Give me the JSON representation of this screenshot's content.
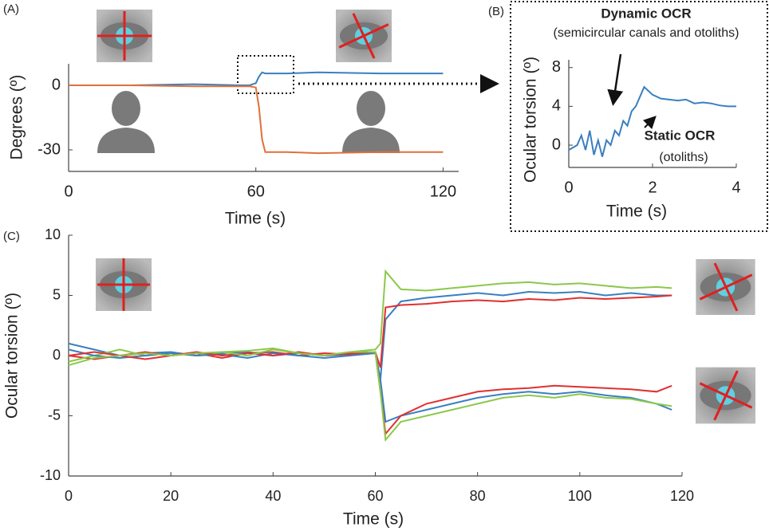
{
  "chart_data": [
    {
      "type": "line",
      "panel_label": "(A)",
      "xlabel": "Time (s)",
      "ylabel": "Degrees (º)",
      "xlim": [
        0,
        125
      ],
      "ylim": [
        -40,
        10
      ],
      "xticks": [
        0,
        60,
        120
      ],
      "yticks": [
        0,
        -30
      ],
      "x": [
        0,
        20,
        40,
        55,
        58,
        60,
        61,
        62,
        63,
        65,
        70,
        80,
        100,
        120
      ],
      "series": [
        {
          "color": "#3a7fc1",
          "values": [
            0,
            0,
            0.5,
            0,
            0,
            1,
            4,
            6,
            5.5,
            5.5,
            5.5,
            6,
            5.5,
            5.5
          ]
        },
        {
          "color": "#e0703a",
          "values": [
            0,
            0,
            -0.5,
            -0.5,
            -0.5,
            -1,
            -10,
            -25,
            -31,
            -31,
            -31,
            -31.5,
            -31,
            -31
          ]
        }
      ]
    },
    {
      "type": "line",
      "panel_label": "(B)",
      "xlabel": "Time (s)",
      "ylabel": "Ocular torsion (º)",
      "xlim": [
        0,
        4
      ],
      "ylim": [
        -2.3,
        8.8
      ],
      "xticks": [
        0,
        2,
        4
      ],
      "yticks": [
        0,
        4,
        8
      ],
      "annotations": [
        "Dynamic OCR",
        "(semicircular canals and otoliths)",
        "Static OCR",
        "(otoliths)"
      ],
      "x": [
        0,
        0.2,
        0.3,
        0.4,
        0.5,
        0.6,
        0.7,
        0.8,
        0.9,
        1.0,
        1.1,
        1.2,
        1.3,
        1.4,
        1.5,
        1.6,
        1.7,
        1.8,
        2.0,
        2.2,
        2.4,
        2.6,
        2.8,
        3.0,
        3.2,
        3.4,
        3.6,
        3.8,
        4.0
      ],
      "series": [
        {
          "color": "#3a7fc1",
          "values": [
            -0.5,
            0,
            1,
            -0.5,
            1.5,
            -1,
            0.5,
            -1.2,
            0.5,
            0,
            1.5,
            1,
            2.5,
            2,
            3.5,
            4,
            5,
            6,
            5.2,
            4.8,
            4.7,
            4.6,
            4.7,
            4.3,
            4.4,
            4.3,
            4.1,
            4.0,
            4.0
          ]
        }
      ]
    },
    {
      "type": "line",
      "panel_label": "(C)",
      "xlabel": "Time (s)",
      "ylabel": "Ocular torsion (º)",
      "xlim": [
        0,
        120
      ],
      "ylim": [
        -10,
        10
      ],
      "xticks": [
        0,
        20,
        40,
        60,
        80,
        100,
        120
      ],
      "yticks": [
        -10,
        -5,
        0,
        5,
        10
      ],
      "x": [
        0,
        5,
        10,
        15,
        20,
        25,
        30,
        35,
        40,
        45,
        50,
        55,
        60,
        61,
        62,
        65,
        70,
        75,
        80,
        85,
        90,
        95,
        100,
        105,
        110,
        115,
        118
      ],
      "series": [
        {
          "color": "#3a7fc1",
          "values": [
            1,
            0.5,
            0,
            0.2,
            0.3,
            0,
            0.2,
            0.3,
            0,
            0.2,
            0,
            0.1,
            0.3,
            -2,
            3,
            4.5,
            4.8,
            5,
            5.2,
            5,
            5.3,
            5.2,
            5.3,
            5,
            5.2,
            5,
            5
          ]
        },
        {
          "color": "#e03030",
          "values": [
            0,
            -0.3,
            0,
            0.3,
            0,
            0.2,
            -0.2,
            0.2,
            0.3,
            0,
            0.2,
            0.1,
            0.3,
            -1,
            4,
            4.2,
            4.3,
            4.5,
            4.6,
            4.5,
            4.7,
            4.6,
            4.8,
            4.7,
            4.8,
            4.9,
            5
          ]
        },
        {
          "color": "#8cc84b",
          "values": [
            -0.5,
            0,
            0.5,
            0,
            0.2,
            0,
            0.3,
            0.4,
            0.6,
            0.2,
            0,
            0.3,
            0.5,
            1,
            7,
            5.5,
            5.4,
            5.6,
            5.8,
            6,
            6.1,
            5.9,
            6,
            5.8,
            5.6,
            5.7,
            5.6
          ]
        },
        {
          "color": "#3a7fc1",
          "values": [
            0.5,
            0,
            -0.2,
            0,
            0.2,
            0,
            0.1,
            -0.2,
            0.2,
            0,
            -0.2,
            0,
            0.2,
            -2,
            -5.5,
            -5,
            -4.5,
            -4,
            -3.5,
            -3.2,
            -3,
            -3.2,
            -3,
            -3.3,
            -3.5,
            -4,
            -4.5
          ]
        },
        {
          "color": "#e03030",
          "values": [
            0,
            0.3,
            0,
            -0.3,
            0,
            0.3,
            0,
            0.2,
            0,
            0.3,
            0,
            0.2,
            0.3,
            -3,
            -6.5,
            -5,
            -4,
            -3.5,
            -3,
            -2.8,
            -2.7,
            -2.5,
            -2.6,
            -2.7,
            -2.8,
            -3,
            -2.5
          ]
        },
        {
          "color": "#8cc84b",
          "values": [
            -0.8,
            -0.2,
            0,
            0.2,
            0,
            0.2,
            0.3,
            0,
            0.5,
            0.2,
            0,
            0.3,
            0.3,
            -3,
            -7,
            -5.5,
            -5,
            -4.5,
            -4,
            -3.5,
            -3.3,
            -3.5,
            -3.2,
            -3.5,
            -3.6,
            -4,
            -4.2
          ]
        }
      ]
    }
  ]
}
